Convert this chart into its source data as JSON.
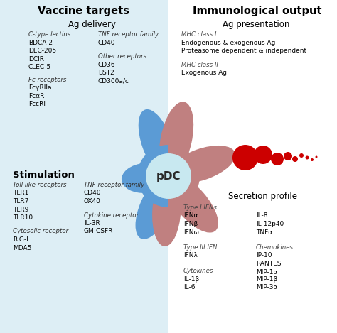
{
  "title_left": "Vaccine targets",
  "title_right": "Immunological output",
  "bg_left": "#ddeef5",
  "bg_right": "#ffffff",
  "cell_color_left": "#5b9bd5",
  "cell_color_right": "#c08080",
  "cell_center_color": "#c8e8f0",
  "pdc_label": "pDC",
  "ag_delivery_title": "Ag delivery",
  "ag_delivery_col1_header": "C-type lectins",
  "ag_delivery_col1": [
    "BDCA-2",
    "DEC-205",
    "DCIR",
    "CLEC-5"
  ],
  "ag_delivery_col2_header": "TNF receptor family",
  "ag_delivery_col2a": [
    "CD40"
  ],
  "ag_delivery_col2_header2": "Other receptors",
  "ag_delivery_col2b": [
    "CD36",
    "BST2",
    "CD300a/c"
  ],
  "ag_delivery_col3_header": "Fc receptors",
  "ag_delivery_col3": [
    "FcγRIIa",
    "FcαR",
    "FcεRI"
  ],
  "stimulation_title": "Stimulation",
  "stim_col1_header": "Toll like receptors",
  "stim_col1": [
    "TLR1",
    "TLR7",
    "TLR9",
    "TLR10"
  ],
  "stim_col2_header": "TNF receptor family",
  "stim_col2a": [
    "CD40",
    "OX40"
  ],
  "stim_col2_header2": "Cytokine receptor",
  "stim_col2b": [
    "IL-3R",
    "GM-CSFR"
  ],
  "stim_col3_header": "Cytosolic receptor",
  "stim_col3": [
    "RIG-I",
    "MDA5"
  ],
  "ag_presentation_title": "Ag presentation",
  "ag_pres_h1": "MHC class I",
  "ag_pres_l1": "Endogenous & exogenous Ag",
  "ag_pres_l2": "Proteasome dependent & independent",
  "ag_pres_h2": "MHC class II",
  "ag_pres_l3": "Exogenous Ag",
  "secretion_title": "Secretion profile",
  "sec_col1_h1": "Type I IFNs",
  "sec_col1_a": [
    "IFNα",
    "IFNβ",
    "IFNω"
  ],
  "sec_col1_h2": "Type III IFN",
  "sec_col1_b": [
    "IFNλ"
  ],
  "sec_col1_h3": "Cytokines",
  "sec_col1_c": [
    "IL-1β",
    "IL-6"
  ],
  "sec_col2_a": [
    "IL-8",
    "IL-12p40",
    "TNFα"
  ],
  "sec_col2_h2": "Chemokines",
  "sec_col2_b": [
    "IP-10",
    "RANTES",
    "MIP-1α"
  ],
  "sec_col2_c": [
    "MIP-1β",
    "MIP-3α"
  ],
  "dot_color": "#cc0000"
}
